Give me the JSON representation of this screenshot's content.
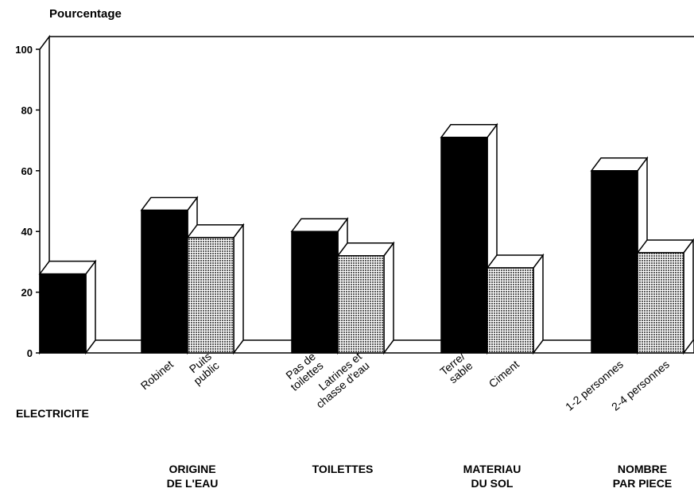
{
  "chart_data": {
    "type": "bar3d",
    "title": "Pourcentage",
    "ylim": [
      0,
      100
    ],
    "yticks": [
      0,
      20,
      40,
      60,
      80,
      100
    ],
    "colors": [
      "#000000",
      "#5a5a5a"
    ],
    "groups": [
      {
        "name": [
          "ELECTRICITE"
        ],
        "categories": [
          null
        ],
        "values": [
          26
        ]
      },
      {
        "name": [
          "ORIGINE",
          "DE L'EAU"
        ],
        "categories": [
          [
            "Robinet"
          ],
          [
            "Puits",
            "public"
          ]
        ],
        "values": [
          47,
          38
        ]
      },
      {
        "name": [
          "TOILETTES"
        ],
        "categories": [
          [
            "Pas de",
            "toilettes"
          ],
          [
            "Latrines et",
            "chasse d'eau"
          ]
        ],
        "values": [
          40,
          32
        ]
      },
      {
        "name": [
          "MATERIAU",
          "DU SOL"
        ],
        "categories": [
          [
            "Terre/",
            "sable"
          ],
          [
            "Ciment"
          ]
        ],
        "values": [
          71,
          28
        ]
      },
      {
        "name": [
          "NOMBRE",
          "PAR PIECE"
        ],
        "categories": [
          [
            "1-2 personnes"
          ],
          [
            "2-4 personnes"
          ]
        ],
        "values": [
          60,
          33
        ]
      }
    ]
  }
}
